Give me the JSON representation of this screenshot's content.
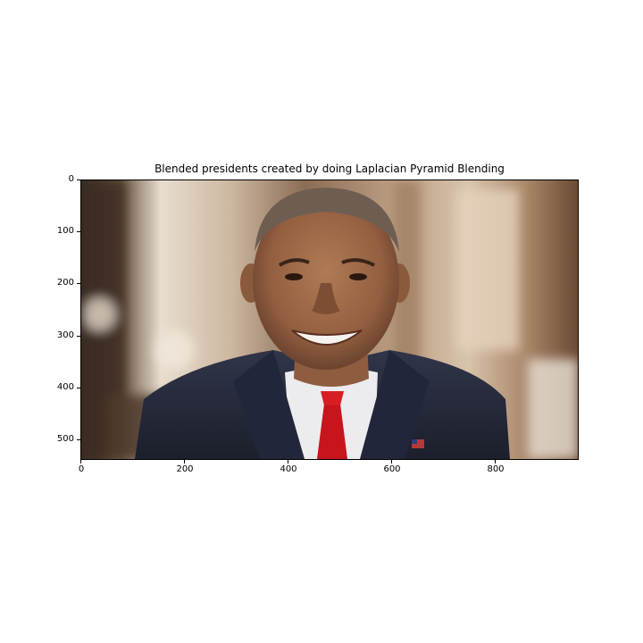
{
  "figure": {
    "title": "Blended presidents created by doing Laplacian Pyramid Blending"
  },
  "axes": {
    "x_ticks": [
      "0",
      "200",
      "400",
      "600",
      "800"
    ],
    "y_ticks": [
      "0",
      "100",
      "200",
      "300",
      "400",
      "500"
    ],
    "x_range": [
      0,
      960
    ],
    "y_range": [
      540,
      0
    ]
  },
  "image": {
    "subject": "smiling man in dark suit, white shirt and red tie, flag lapel pin",
    "background_colors": [
      "#3b2a1e",
      "#e9dccb",
      "#8a6a4e",
      "#c9b095"
    ],
    "skin_color": "#9a6a4a",
    "suit_color": "#262a38",
    "tie_color": "#c8141c"
  }
}
